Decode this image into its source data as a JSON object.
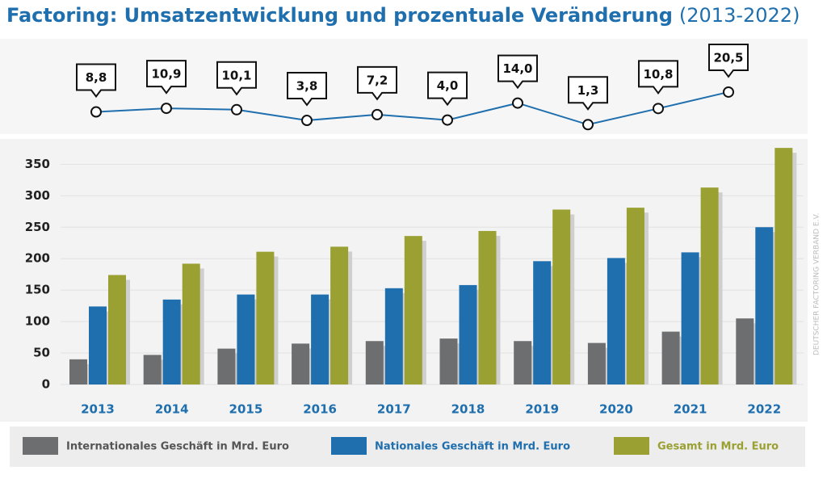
{
  "chart_data": [
    {
      "type": "line",
      "title": "Factoring: Umsatzentwicklung und prozentuale Veränderung",
      "subtitle": "(2013-2022)",
      "color": "#1f6fae",
      "values": [
        8.8,
        10.9,
        10.1,
        3.8,
        7.2,
        4.0,
        14.0,
        1.3,
        10.8,
        20.5
      ],
      "value_labels": [
        "8,8",
        "10,9",
        "10,1",
        "3,8",
        "7,2",
        "4,0",
        "14,0",
        "1,3",
        "10,8",
        "20,5"
      ]
    },
    {
      "type": "bar",
      "source": "DEUTSCHER FACTORING VERBAND E.V.",
      "categories": [
        "2013",
        "2014",
        "2015",
        "2016",
        "2017",
        "2018",
        "2019",
        "2020",
        "2021",
        "2022"
      ],
      "series": [
        {
          "name": "Internationales Geschäft in Mrd. Euro",
          "color": "#6d6e70",
          "values": [
            40,
            47,
            57,
            65,
            69,
            73,
            69,
            66,
            84,
            105
          ]
        },
        {
          "name": "Nationales Geschäft in Mrd. Euro",
          "color": "#1f6fae",
          "values": [
            124,
            135,
            143,
            143,
            153,
            158,
            196,
            201,
            210,
            250
          ]
        },
        {
          "name": "Gesamt in Mrd. Euro",
          "color": "#9aa031",
          "values": [
            174,
            192,
            211,
            219,
            236,
            244,
            278,
            281,
            313,
            376
          ]
        }
      ],
      "ylim": [
        0,
        380
      ],
      "yticks": [
        0,
        50,
        100,
        150,
        200,
        250,
        300,
        350
      ],
      "grid": true
    }
  ]
}
